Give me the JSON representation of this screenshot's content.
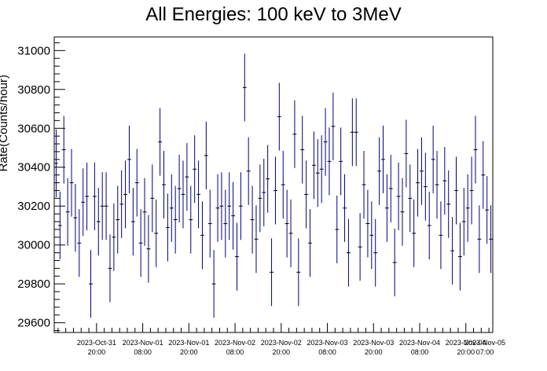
{
  "chart_data": {
    "type": "scatter",
    "title": "All Energies:  100 keV to 3MeV",
    "ylabel": "Rate(Counts/hour)",
    "xlabel": "",
    "x_start": "2023-10-31 09:00",
    "bin_hours": 1,
    "xlim_hours": [
      0,
      114
    ],
    "ylim": [
      29550,
      31070
    ],
    "yticks": [
      29600,
      29800,
      30000,
      30200,
      30400,
      30600,
      30800,
      31000
    ],
    "xticks": [
      {
        "hours": 11,
        "date": "2023-Oct-31",
        "time": "20:00"
      },
      {
        "hours": 23,
        "date": "2023-Nov-01",
        "time": "08:00"
      },
      {
        "hours": 35,
        "date": "2023-Nov-01",
        "time": "20:00"
      },
      {
        "hours": 47,
        "date": "2023-Nov-02",
        "time": "08:00"
      },
      {
        "hours": 59,
        "date": "2023-Nov-02",
        "time": "20:00"
      },
      {
        "hours": 71,
        "date": "2023-Nov-03",
        "time": "08:00"
      },
      {
        "hours": 83,
        "date": "2023-Nov-03",
        "time": "20:00"
      },
      {
        "hours": 95,
        "date": "2023-Nov-04",
        "time": "08:00"
      },
      {
        "hours": 107,
        "date": "2023-Nov-04",
        "time": "20:00"
      },
      {
        "hours": 119,
        "date": "2023-Nov-05",
        "time": "07:00"
      }
    ],
    "grid": false,
    "legend": "none",
    "error": 174,
    "color": "#00007f",
    "values": [
      30420,
      30100,
      30490,
      30170,
      30320,
      30140,
      30010,
      30220,
      30250,
      29800,
      30250,
      30120,
      30200,
      30200,
      29880,
      30040,
      30130,
      30210,
      30260,
      30440,
      30120,
      30320,
      30010,
      30170,
      29980,
      30240,
      30060,
      30530,
      30310,
      30090,
      30190,
      30130,
      30290,
      30260,
      30350,
      30130,
      30390,
      30260,
      30050,
      30460,
      30110,
      29800,
      30190,
      30200,
      30110,
      30200,
      30150,
      29940,
      30200,
      30810,
      30380,
      30130,
      30030,
      30240,
      30270,
      30340,
      29860,
      30280,
      30660,
      30310,
      30110,
      30060,
      30570,
      29860,
      30490,
      30260,
      30010,
      30410,
      30370,
      30390,
      30530,
      30430,
      30610,
      30080,
      30430,
      30190,
      29960,
      30580,
      30580,
      29990,
      30310,
      30110,
      30050,
      29960,
      30380,
      30440,
      30190,
      30290,
      29910,
      30250,
      30170,
      30470,
      30240,
      30060,
      30320,
      30380,
      30300,
      30100,
      30440,
      30310,
      30050,
      30330,
      30210,
      29970,
      30280,
      29940,
      30120,
      30190,
      30280,
      30490,
      30030,
      30360,
      30180,
      30030
    ]
  }
}
